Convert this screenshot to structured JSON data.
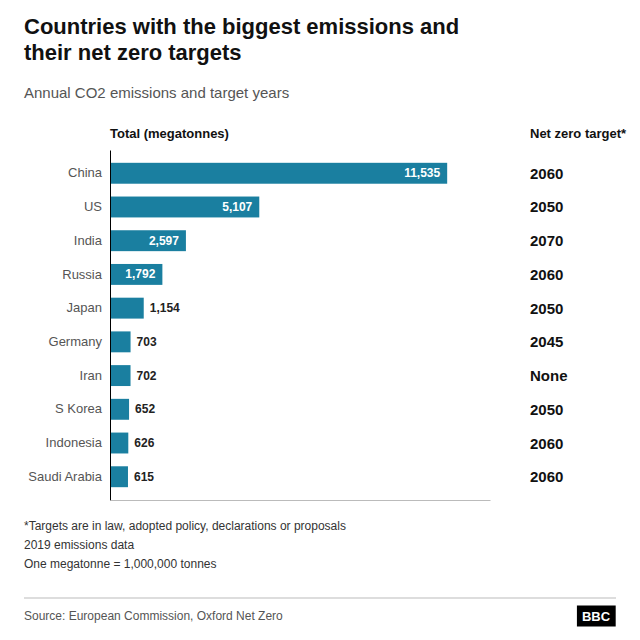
{
  "chart_data": {
    "type": "bar",
    "orientation": "horizontal",
    "title": "Countries with the biggest emissions and\ntheir net zero targets",
    "subtitle": "Annual CO2 emissions and target years",
    "categories": [
      "China",
      "US",
      "India",
      "Russia",
      "Japan",
      "Germany",
      "Iran",
      "S Korea",
      "Indonesia",
      "Saudi Arabia"
    ],
    "values": [
      11535,
      5107,
      2597,
      1792,
      1154,
      703,
      702,
      652,
      626,
      615
    ],
    "value_labels": [
      "11,535",
      "5,107",
      "2,597",
      "1,792",
      "1,154",
      "703",
      "702",
      "652",
      "626",
      "615"
    ],
    "targets": [
      "2060",
      "2050",
      "2070",
      "2060",
      "2050",
      "2045",
      "None",
      "2050",
      "2060",
      "2060"
    ],
    "color": "#1a7fa0",
    "xlim": [
      0,
      13000
    ],
    "data_labels": true,
    "tick_labels": "y",
    "grid": false,
    "annotations": [
      "Total (megatonnes)",
      "Net zero target*",
      "*Targets are in law, adopted policy, declarations or proposals\n2019 emissions data\nOne megatonne = 1,000,000 tonnes",
      "Source: European Commission, Oxford Net Zero",
      "BBC"
    ]
  }
}
